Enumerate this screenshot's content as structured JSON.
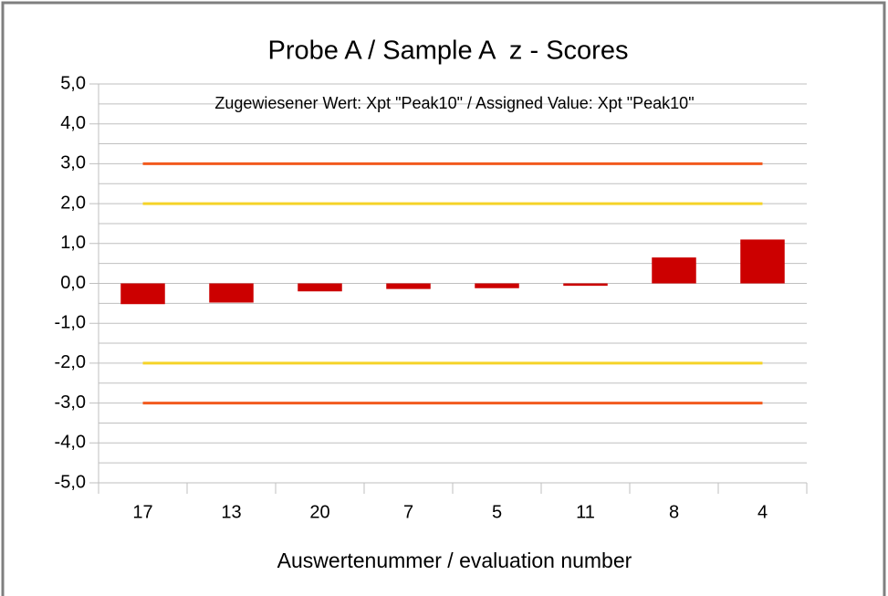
{
  "chart_data": {
    "type": "bar",
    "title": "Probe A / Sample A  z - Scores",
    "annotation": "Zugewiesener Wert: Xpt \"Peak10\" / Assigned Value: Xpt \"Peak10\"",
    "x_label": "Auswertenummer / evaluation number",
    "categories": [
      "17",
      "13",
      "20",
      "7",
      "5",
      "11",
      "8",
      "4"
    ],
    "series": [
      {
        "type": "bar",
        "color": "#cc0000",
        "values": [
          -0.52,
          -0.48,
          -0.2,
          -0.14,
          -0.12,
          -0.06,
          0.65,
          1.1
        ]
      },
      {
        "type": "line",
        "color": "#f25a1e",
        "values": [
          3,
          3,
          3,
          3,
          3,
          3,
          3,
          3
        ]
      },
      {
        "type": "line",
        "color": "#f5d328",
        "values": [
          2,
          2,
          2,
          2,
          2,
          2,
          2,
          2
        ]
      },
      {
        "type": "line",
        "color": "#f5d328",
        "values": [
          -2,
          -2,
          -2,
          -2,
          -2,
          -2,
          -2,
          -2
        ]
      },
      {
        "type": "line",
        "color": "#f25a1e",
        "values": [
          -3,
          -3,
          -3,
          -3,
          -3,
          -3,
          -3,
          -3
        ]
      }
    ],
    "ylim": [
      -5,
      5
    ],
    "yticks": [
      {
        "value": 5,
        "label": "5,0"
      },
      {
        "value": 4,
        "label": "4,0"
      },
      {
        "value": 3,
        "label": "3,0"
      },
      {
        "value": 2,
        "label": "2,0"
      },
      {
        "value": 1,
        "label": "1,0"
      },
      {
        "value": 0,
        "label": "0,0"
      },
      {
        "value": -1,
        "label": "-1,0"
      },
      {
        "value": -2,
        "label": "-2,0"
      },
      {
        "value": -3,
        "label": "-3,0"
      },
      {
        "value": -4,
        "label": "-4,0"
      },
      {
        "value": -5,
        "label": "-5,0"
      }
    ],
    "minor_yticks": [
      4.5,
      3.5,
      2.5,
      1.5,
      0.5,
      -0.5,
      -1.5,
      -2.5,
      -3.5,
      -4.5
    ],
    "grid": true
  }
}
